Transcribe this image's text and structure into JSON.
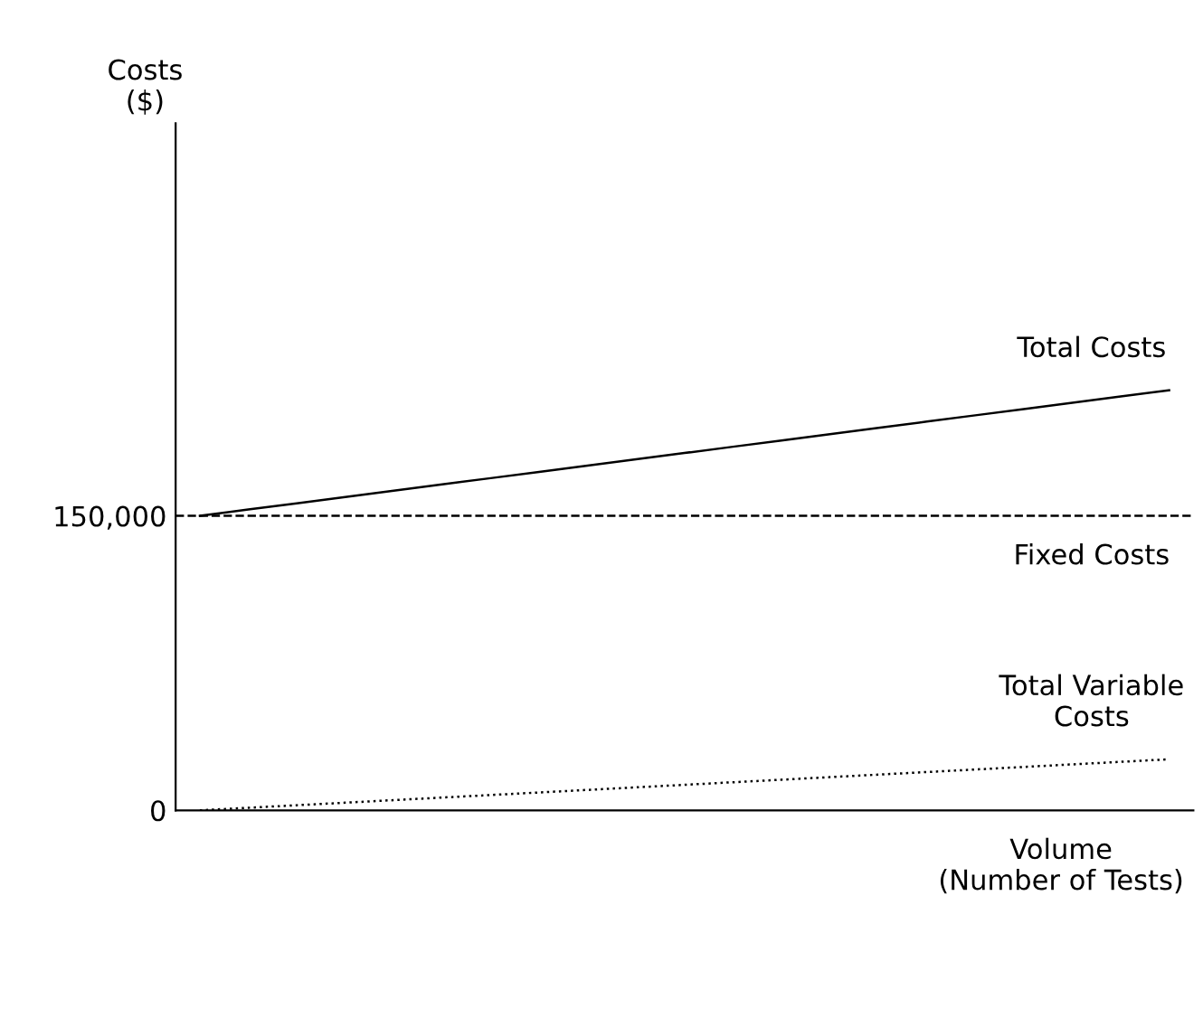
{
  "chart_data": {
    "type": "line",
    "ylabel": "Costs\n($)",
    "xlabel": "Volume\n(Number of Tests)",
    "categories": [
      null,
      null,
      null,
      null,
      null,
      null,
      null,
      null,
      null,
      null,
      null,
      null,
      null,
      null,
      null,
      null,
      null,
      null,
      null,
      null,
      null
    ],
    "series": [
      {
        "name": "Total Costs",
        "color": "#000000",
        "values": [
          150000,
          153200,
          156400,
          159600,
          162800,
          166000,
          169200,
          172400,
          175600,
          178800,
          182000,
          185200,
          188400,
          191600,
          194800,
          198000,
          201200,
          204400,
          207600,
          210800,
          214000
        ],
        "line_style": "solid"
      },
      {
        "name": "Total Variable\nCosts",
        "color": "#000000",
        "values": [
          0,
          1300,
          2600,
          3900,
          5200,
          6500,
          7800,
          9100,
          10400,
          11700,
          13000,
          14300,
          15600,
          16900,
          18200,
          19500,
          20800,
          22100,
          23400,
          24700,
          26000
        ],
        "line_style": "dotted"
      }
    ],
    "ref_lines": [
      {
        "axis": "y",
        "value": 150000,
        "label": "Fixed Costs",
        "color": "#000000",
        "line_style": "dashed"
      }
    ],
    "ylim": [
      0,
      350000
    ],
    "yticks": [
      0,
      {
        "value": 150000,
        "label": "150,000"
      }
    ],
    "grid": false,
    "legend": false,
    "marker": "none"
  }
}
